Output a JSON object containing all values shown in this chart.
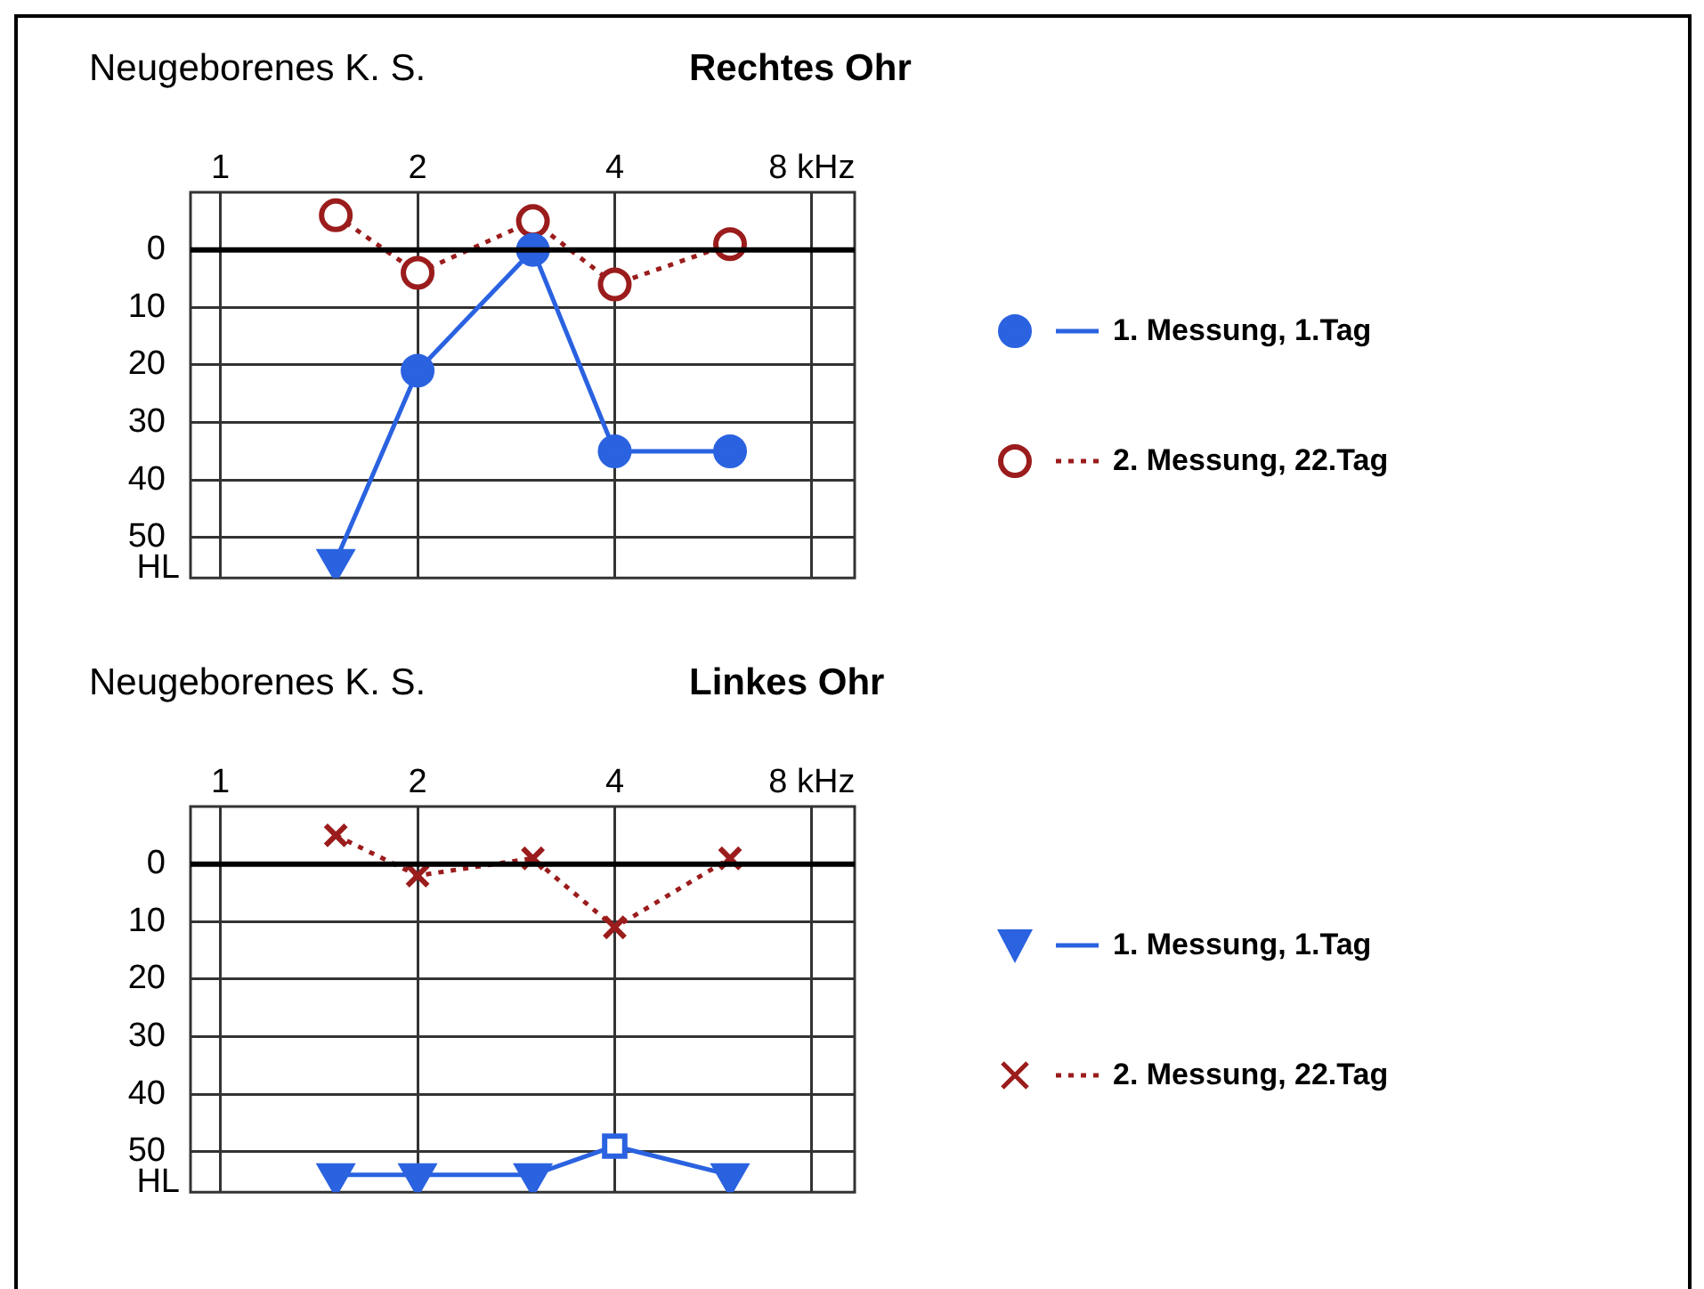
{
  "chart_data": [
    {
      "type": "line",
      "title": "Neugeborenes K. S.",
      "subtitle": "Rechtes Ohr",
      "ylabel": "HL",
      "x": [
        1.5,
        2,
        3,
        4,
        6
      ],
      "series": [
        {
          "name": "1. Messung, 1.Tag",
          "color": "#2a62e0",
          "values": [
            54,
            21,
            0,
            35,
            35
          ],
          "marker": [
            "triangle-down",
            "circle",
            "circle",
            "circle",
            "circle"
          ],
          "line_style": "solid"
        },
        {
          "name": "2. Messung, 22.Tag",
          "color": "#9b1c1c",
          "values": [
            -6,
            4,
            -5,
            6,
            -1
          ],
          "marker": "circle-open",
          "line_style": "dotted"
        }
      ],
      "xlim": [
        0.9,
        9.3
      ],
      "xticks": [
        1,
        2,
        4,
        {
          "value": 8,
          "label": "8 kHz"
        }
      ],
      "log": "x",
      "ylim": [
        57,
        -10
      ],
      "yticks": [
        0,
        10,
        20,
        30,
        40,
        50
      ],
      "ref_lines": [
        {
          "axis": "y",
          "value": 0,
          "color": "#000000"
        }
      ],
      "grid": true,
      "legend": "right"
    },
    {
      "type": "line",
      "title": "Neugeborenes K. S.",
      "subtitle": "Linkes Ohr",
      "ylabel": "HL",
      "x": [
        1.5,
        2,
        3,
        4,
        6
      ],
      "series": [
        {
          "name": "1. Messung, 1.Tag",
          "color": "#2a62e0",
          "values": [
            54,
            54,
            54,
            49,
            54
          ],
          "marker": [
            "triangle-down",
            "triangle-down",
            "triangle-down",
            "square-open",
            "triangle-down"
          ],
          "line_style": "solid"
        },
        {
          "name": "2. Messung, 22.Tag",
          "color": "#9b1c1c",
          "values": [
            -5,
            2,
            -1,
            11,
            -1
          ],
          "marker": "cross",
          "line_style": "dotted"
        }
      ],
      "xlim": [
        0.9,
        9.3
      ],
      "xticks": [
        1,
        2,
        4,
        {
          "value": 8,
          "label": "8 kHz"
        }
      ],
      "log": "x",
      "ylim": [
        57,
        -10
      ],
      "yticks": [
        0,
        10,
        20,
        30,
        40,
        50
      ],
      "ref_lines": [
        {
          "axis": "y",
          "value": 0,
          "color": "#000000"
        }
      ],
      "grid": true,
      "legend": "right"
    }
  ]
}
